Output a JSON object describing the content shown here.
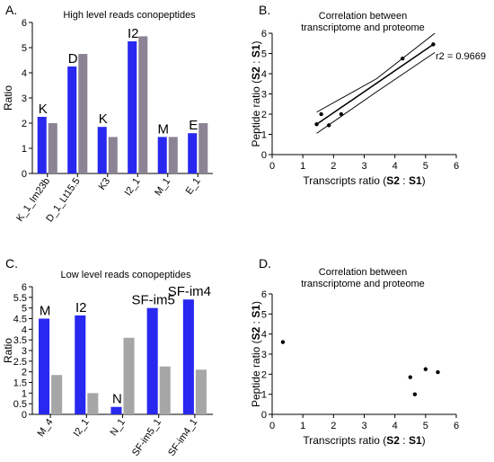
{
  "chart_data": [
    {
      "panel": "A.",
      "type": "bar",
      "title": "High level reads conopeptides",
      "ylabel": "Ratio",
      "xlabel": "",
      "ylim": [
        0,
        6
      ],
      "yticks": [
        "0",
        "1",
        "2",
        "3",
        "4",
        "5",
        "6"
      ],
      "categories": [
        "K_1_Im23b",
        "D_1_Lt15.5",
        "K3",
        "I2_1",
        "M_1",
        "E_1"
      ],
      "bar_labels": [
        "K",
        "D",
        "K",
        "I2",
        "M",
        "E"
      ],
      "series": [
        {
          "values": [
            2.25,
            4.25,
            1.85,
            5.25,
            1.45,
            1.6
          ],
          "color": "#2828f0"
        },
        {
          "values": [
            2.0,
            4.75,
            1.45,
            5.45,
            1.45,
            2.0
          ],
          "color": "#8c8494"
        }
      ]
    },
    {
      "panel": "B.",
      "type": "scatter",
      "title": [
        "Correlation between",
        "transcriptome and proteome"
      ],
      "xlabel": [
        "Transcripts ratio (",
        "S2",
        " : ",
        "S1",
        ")"
      ],
      "ylabel": [
        "Peptide ratio (",
        "S2",
        " : ",
        "S1",
        ")"
      ],
      "xlim": [
        0,
        6
      ],
      "ylim": [
        0,
        6
      ],
      "xticks": [
        "0",
        "1",
        "2",
        "3",
        "4",
        "5",
        "6"
      ],
      "yticks": [
        "0",
        "1",
        "2",
        "3",
        "4",
        "5",
        "6"
      ],
      "points": [
        {
          "x": 1.45,
          "y": 1.5
        },
        {
          "x": 1.6,
          "y": 2.0
        },
        {
          "x": 1.85,
          "y": 1.45
        },
        {
          "x": 2.25,
          "y": 2.0
        },
        {
          "x": 4.25,
          "y": 4.75
        },
        {
          "x": 5.25,
          "y": 5.45
        }
      ],
      "fit": {
        "x1": 1.45,
        "y1": 1.5,
        "x2": 5.3,
        "y2": 5.5
      },
      "confidence_band": {
        "upper": [
          {
            "x": 1.45,
            "y": 2.1
          },
          {
            "x": 3.4,
            "y": 3.75
          },
          {
            "x": 5.3,
            "y": 6.0
          }
        ],
        "lower": [
          {
            "x": 1.45,
            "y": 1.05
          },
          {
            "x": 3.4,
            "y": 3.1
          },
          {
            "x": 5.3,
            "y": 5.05
          }
        ]
      },
      "annotation": "r2 = 0.9669"
    },
    {
      "panel": "C.",
      "type": "bar",
      "title": "Low level reads conopeptides",
      "ylabel": "Ratio",
      "xlabel": "",
      "ylim": [
        0,
        6
      ],
      "yticks": [
        "0",
        "0.5",
        "1",
        "1.5",
        "2",
        "2.5",
        "3",
        "3.5",
        "4",
        "4.5",
        "5",
        "5.5",
        "6"
      ],
      "categories": [
        "M_4",
        "I2_1",
        "N_1",
        "SF-im5_1",
        "SF-im4_1"
      ],
      "bar_labels": [
        "M",
        "I2",
        "N",
        "SF-im5",
        "SF-im4"
      ],
      "series": [
        {
          "values": [
            4.5,
            4.65,
            0.35,
            5.0,
            5.4
          ],
          "color": "#2828f0"
        },
        {
          "values": [
            1.85,
            1.0,
            3.6,
            2.25,
            2.1
          ],
          "color": "#a6a6a6"
        }
      ]
    },
    {
      "panel": "D.",
      "type": "scatter",
      "title": [
        "Correlation between",
        "transcriptome and proteome"
      ],
      "xlabel": [
        "Transcripts ratio (",
        "S2",
        " : ",
        "S1",
        ")"
      ],
      "ylabel": [
        "Peptide ratio (",
        "S2",
        " : ",
        "S1",
        ")"
      ],
      "xlim": [
        0,
        6
      ],
      "ylim": [
        0,
        6
      ],
      "xticks": [
        "0",
        "1",
        "2",
        "3",
        "4",
        "5",
        "6"
      ],
      "yticks": [
        "0",
        "1",
        "2",
        "3",
        "4",
        "5",
        "6"
      ],
      "points": [
        {
          "x": 0.35,
          "y": 3.6
        },
        {
          "x": 4.5,
          "y": 1.85
        },
        {
          "x": 4.65,
          "y": 1.0
        },
        {
          "x": 5.0,
          "y": 2.25
        },
        {
          "x": 5.4,
          "y": 2.1
        }
      ]
    }
  ]
}
